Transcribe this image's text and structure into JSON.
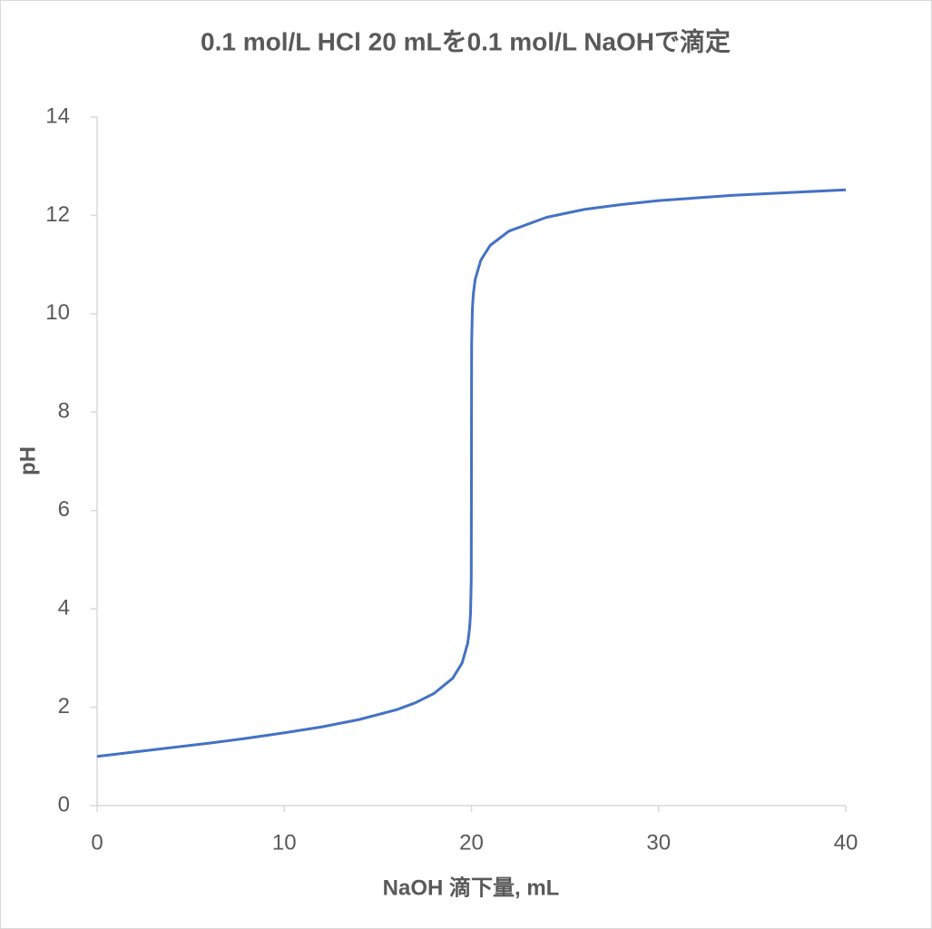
{
  "chart_data": {
    "type": "line",
    "title": "0.1 mol/L HCl 20 mLを0.1 mol/L NaOHで滴定",
    "x_label": "NaOH 滴下量, mL",
    "y_label": "pH",
    "x": [
      0,
      2,
      4,
      6,
      8,
      10,
      12,
      14,
      16,
      17,
      18,
      19,
      19.5,
      19.8,
      19.9,
      19.95,
      19.99,
      20,
      20.01,
      20.05,
      20.1,
      20.2,
      20.5,
      21,
      22,
      24,
      26,
      28,
      30,
      34,
      40
    ],
    "series": [
      {
        "name": "pH",
        "color": "#4472c4",
        "values": [
          1.0,
          1.09,
          1.18,
          1.27,
          1.37,
          1.48,
          1.6,
          1.75,
          1.95,
          2.09,
          2.28,
          2.59,
          2.9,
          3.3,
          3.6,
          3.9,
          4.6,
          7.0,
          9.4,
          10.1,
          10.4,
          10.7,
          11.09,
          11.39,
          11.68,
          11.96,
          12.12,
          12.22,
          12.3,
          12.41,
          12.52
        ]
      }
    ],
    "xlim": [
      0,
      40
    ],
    "xticks": [
      0,
      10,
      20,
      30,
      40
    ],
    "ylim": [
      0,
      14
    ],
    "yticks": [
      0,
      2,
      4,
      6,
      8,
      10,
      12,
      14
    ],
    "grid": false
  }
}
